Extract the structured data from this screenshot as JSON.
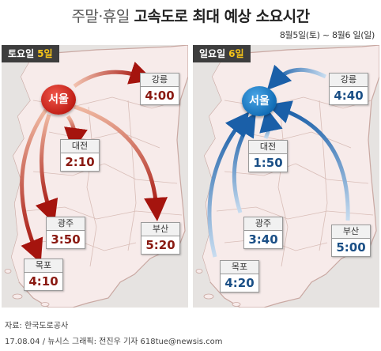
{
  "title": {
    "light": "주말·휴일",
    "bold": "고속도로 최대 예상 소요시간"
  },
  "date_range": "8월5일(토) ~ 8월6 일(일)",
  "saturday": {
    "day_label": "토요일",
    "day_number": "5일",
    "origin": "서울",
    "destinations": [
      {
        "name": "강릉",
        "time": "4:00"
      },
      {
        "name": "대전",
        "time": "2:10"
      },
      {
        "name": "광주",
        "time": "3:50"
      },
      {
        "name": "부산",
        "time": "5:20"
      },
      {
        "name": "목포",
        "time": "4:10"
      }
    ]
  },
  "sunday": {
    "day_label": "일요일",
    "day_number": "6일",
    "destination": "서울",
    "origins": [
      {
        "name": "강릉",
        "time": "4:40"
      },
      {
        "name": "대전",
        "time": "1:50"
      },
      {
        "name": "광주",
        "time": "3:40"
      },
      {
        "name": "부산",
        "time": "5:00"
      },
      {
        "name": "목포",
        "time": "4:20"
      }
    ]
  },
  "footer": {
    "source": "자료: 한국도로공사",
    "credit": "17.08.04 / 뉴시스 그래픽: 전진우 기자 618tue@newsis.com"
  },
  "colors": {
    "saturday_accent": "#c11e16",
    "sunday_accent": "#136eb7",
    "map_land": "#f7ebea",
    "panel_bg": "#e6e3e1",
    "day_number": "#f6c419"
  }
}
